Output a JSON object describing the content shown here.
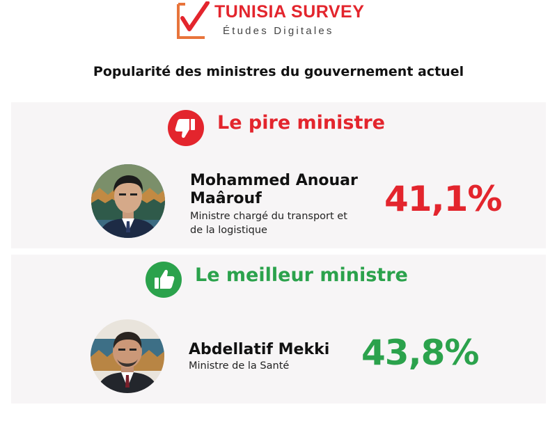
{
  "brand": {
    "name": "TUNISIA SURVEY",
    "tagline": "Études Digitales",
    "color": "#e3252d"
  },
  "headline": "Popularité des ministres du gouvernement actuel",
  "worst": {
    "title": "Le pire ministre",
    "icon": "thumbs-down-icon",
    "color": "#e3252d",
    "name": "Mohammed Anouar Maârouf",
    "role": "Ministre chargé du transport et de la logistique",
    "percentage": "41,1%"
  },
  "best": {
    "title": "Le meilleur ministre",
    "icon": "thumbs-up-icon",
    "color": "#2ba24c",
    "name": "Abdellatif Mekki",
    "role": "Ministre de la Santé",
    "percentage": "43,8%"
  }
}
